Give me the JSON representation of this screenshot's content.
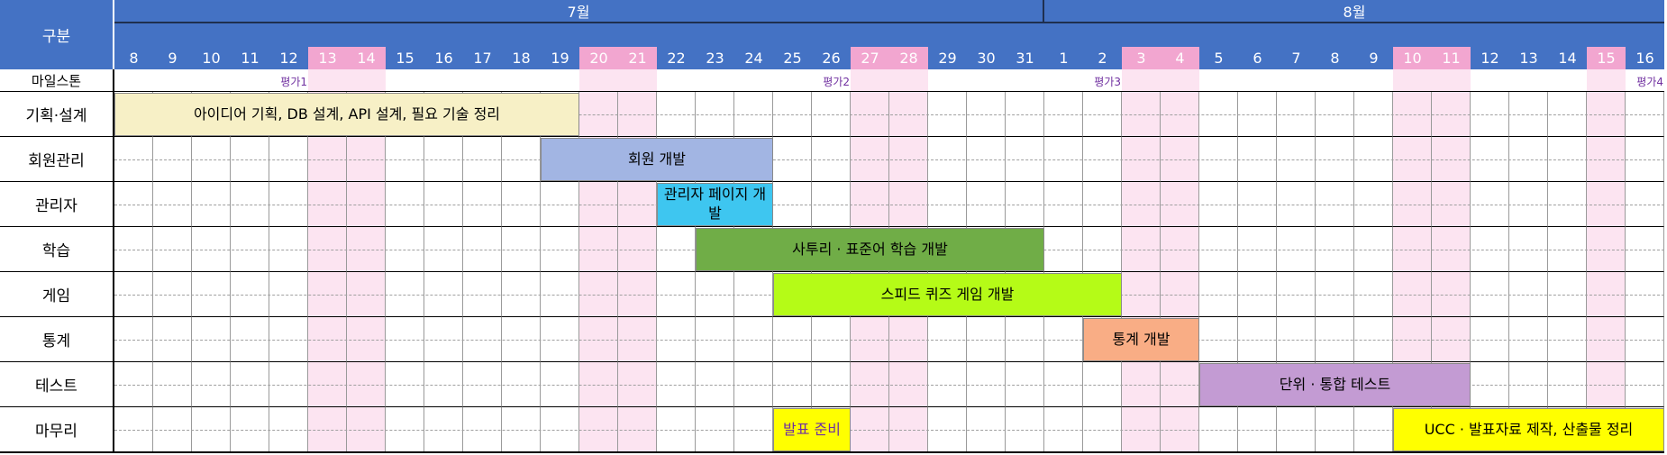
{
  "header": {
    "category_label": "구분",
    "months": [
      {
        "label": "7월",
        "start": 0,
        "span": 24
      },
      {
        "label": "8월",
        "start": 24,
        "span": 16
      }
    ]
  },
  "days": [
    {
      "label": "8",
      "weekend": false
    },
    {
      "label": "9",
      "weekend": false
    },
    {
      "label": "10",
      "weekend": false
    },
    {
      "label": "11",
      "weekend": false
    },
    {
      "label": "12",
      "weekend": false
    },
    {
      "label": "13",
      "weekend": true
    },
    {
      "label": "14",
      "weekend": true
    },
    {
      "label": "15",
      "weekend": false
    },
    {
      "label": "16",
      "weekend": false
    },
    {
      "label": "17",
      "weekend": false
    },
    {
      "label": "18",
      "weekend": false
    },
    {
      "label": "19",
      "weekend": false
    },
    {
      "label": "20",
      "weekend": true
    },
    {
      "label": "21",
      "weekend": true
    },
    {
      "label": "22",
      "weekend": false
    },
    {
      "label": "23",
      "weekend": false
    },
    {
      "label": "24",
      "weekend": false
    },
    {
      "label": "25",
      "weekend": false
    },
    {
      "label": "26",
      "weekend": false
    },
    {
      "label": "27",
      "weekend": true
    },
    {
      "label": "28",
      "weekend": true
    },
    {
      "label": "29",
      "weekend": false
    },
    {
      "label": "30",
      "weekend": false
    },
    {
      "label": "31",
      "weekend": false
    },
    {
      "label": "1",
      "weekend": false
    },
    {
      "label": "2",
      "weekend": false
    },
    {
      "label": "3",
      "weekend": true
    },
    {
      "label": "4",
      "weekend": true
    },
    {
      "label": "5",
      "weekend": false
    },
    {
      "label": "6",
      "weekend": false
    },
    {
      "label": "7",
      "weekend": false
    },
    {
      "label": "8",
      "weekend": false
    },
    {
      "label": "9",
      "weekend": false
    },
    {
      "label": "10",
      "weekend": true
    },
    {
      "label": "11",
      "weekend": true
    },
    {
      "label": "12",
      "weekend": false
    },
    {
      "label": "13",
      "weekend": false
    },
    {
      "label": "14",
      "weekend": false
    },
    {
      "label": "15",
      "weekend": true
    },
    {
      "label": "16",
      "weekend": false
    }
  ],
  "milestone_row": {
    "label": "마일스톤",
    "markers": [
      {
        "label": "평가1",
        "day": 4
      },
      {
        "label": "평가2",
        "day": 18
      },
      {
        "label": "평가3",
        "day": 25
      },
      {
        "label": "평가4",
        "day": 39
      }
    ]
  },
  "rows": [
    {
      "label": "기획·설계",
      "tasks": [
        {
          "text": "아이디어 기획, DB 설계, API 설계, 필요 기술 정리",
          "start": 0,
          "days": 12,
          "color": "#f7f0c6",
          "text_color": "#000000"
        }
      ]
    },
    {
      "label": "회원관리",
      "tasks": [
        {
          "text": "회원 개발",
          "start": 11,
          "days": 6,
          "color": "#a2b5e3",
          "text_color": "#000000"
        }
      ]
    },
    {
      "label": "관리자",
      "tasks": [
        {
          "text": "관리자 페이지 개발",
          "start": 14,
          "days": 3,
          "color": "#3ec6f0",
          "text_color": "#000000"
        }
      ]
    },
    {
      "label": "학습",
      "tasks": [
        {
          "text": "사투리 · 표준어 학습 개발",
          "start": 15,
          "days": 9,
          "color": "#70ad47",
          "text_color": "#000000"
        }
      ]
    },
    {
      "label": "게임",
      "tasks": [
        {
          "text": "스피드 퀴즈 게임 개발",
          "start": 17,
          "days": 9,
          "color": "#b5fb17",
          "text_color": "#000000"
        }
      ]
    },
    {
      "label": "통계",
      "tasks": [
        {
          "text": "통계 개발",
          "start": 25,
          "days": 3,
          "color": "#f9ad85",
          "text_color": "#000000"
        }
      ]
    },
    {
      "label": "테스트",
      "tasks": [
        {
          "text": "단위 · 통합 테스트",
          "start": 28,
          "days": 7,
          "color": "#c39bd3",
          "text_color": "#000000"
        }
      ]
    },
    {
      "label": "마무리",
      "tasks": [
        {
          "text": "발표 준비",
          "start": 17,
          "days": 2,
          "color": "#ffff00",
          "text_color": "#7030a0"
        },
        {
          "text": "UCC · 발표자료 제작, 산출물 정리",
          "start": 33,
          "days": 7,
          "color": "#ffff00",
          "text_color": "#000000"
        }
      ]
    }
  ]
}
